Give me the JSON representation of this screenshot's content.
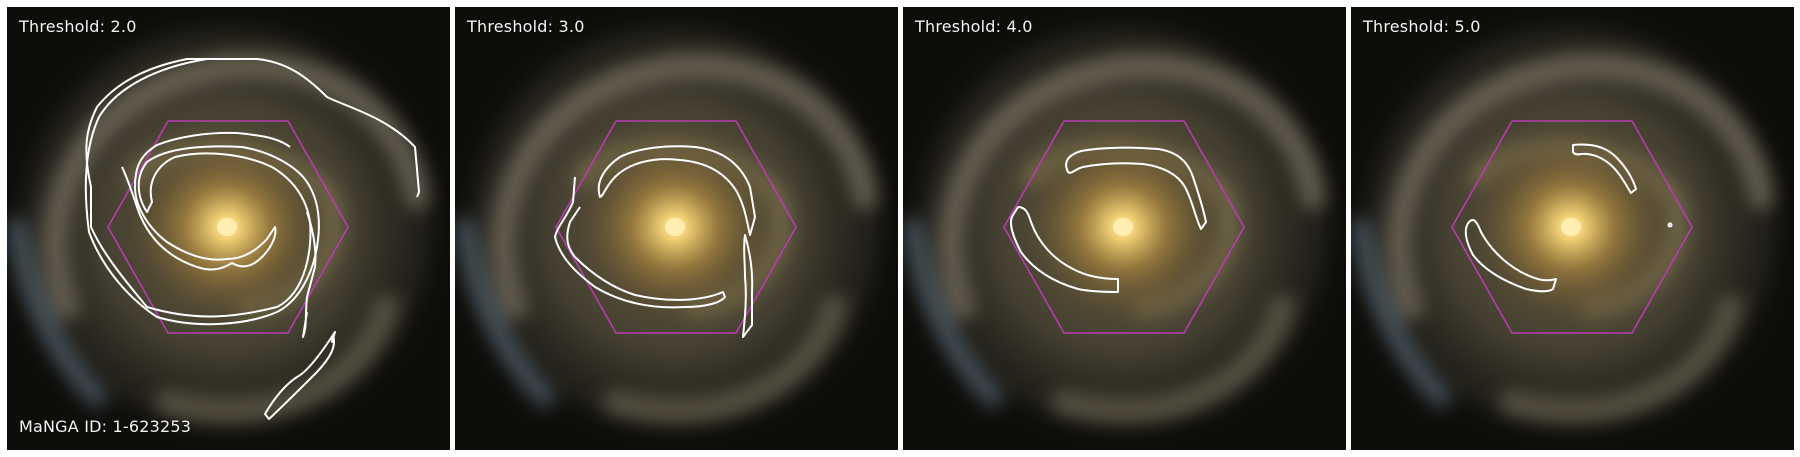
{
  "galaxy": {
    "id_label": "MaNGA ID: 1-623253"
  },
  "panels": [
    {
      "threshold_label": "Threshold: 2.0"
    },
    {
      "threshold_label": "Threshold: 3.0"
    },
    {
      "threshold_label": "Threshold: 4.0"
    },
    {
      "threshold_label": "Threshold: 5.0"
    }
  ],
  "colors": {
    "contour": "#ffffff",
    "hexagon": "#b83cb0",
    "core": "#ffe9a0",
    "bulge": "#c7a24f",
    "arms": "#8e8466",
    "outer_blue": "#6f8598",
    "background": "#0c0b08"
  }
}
